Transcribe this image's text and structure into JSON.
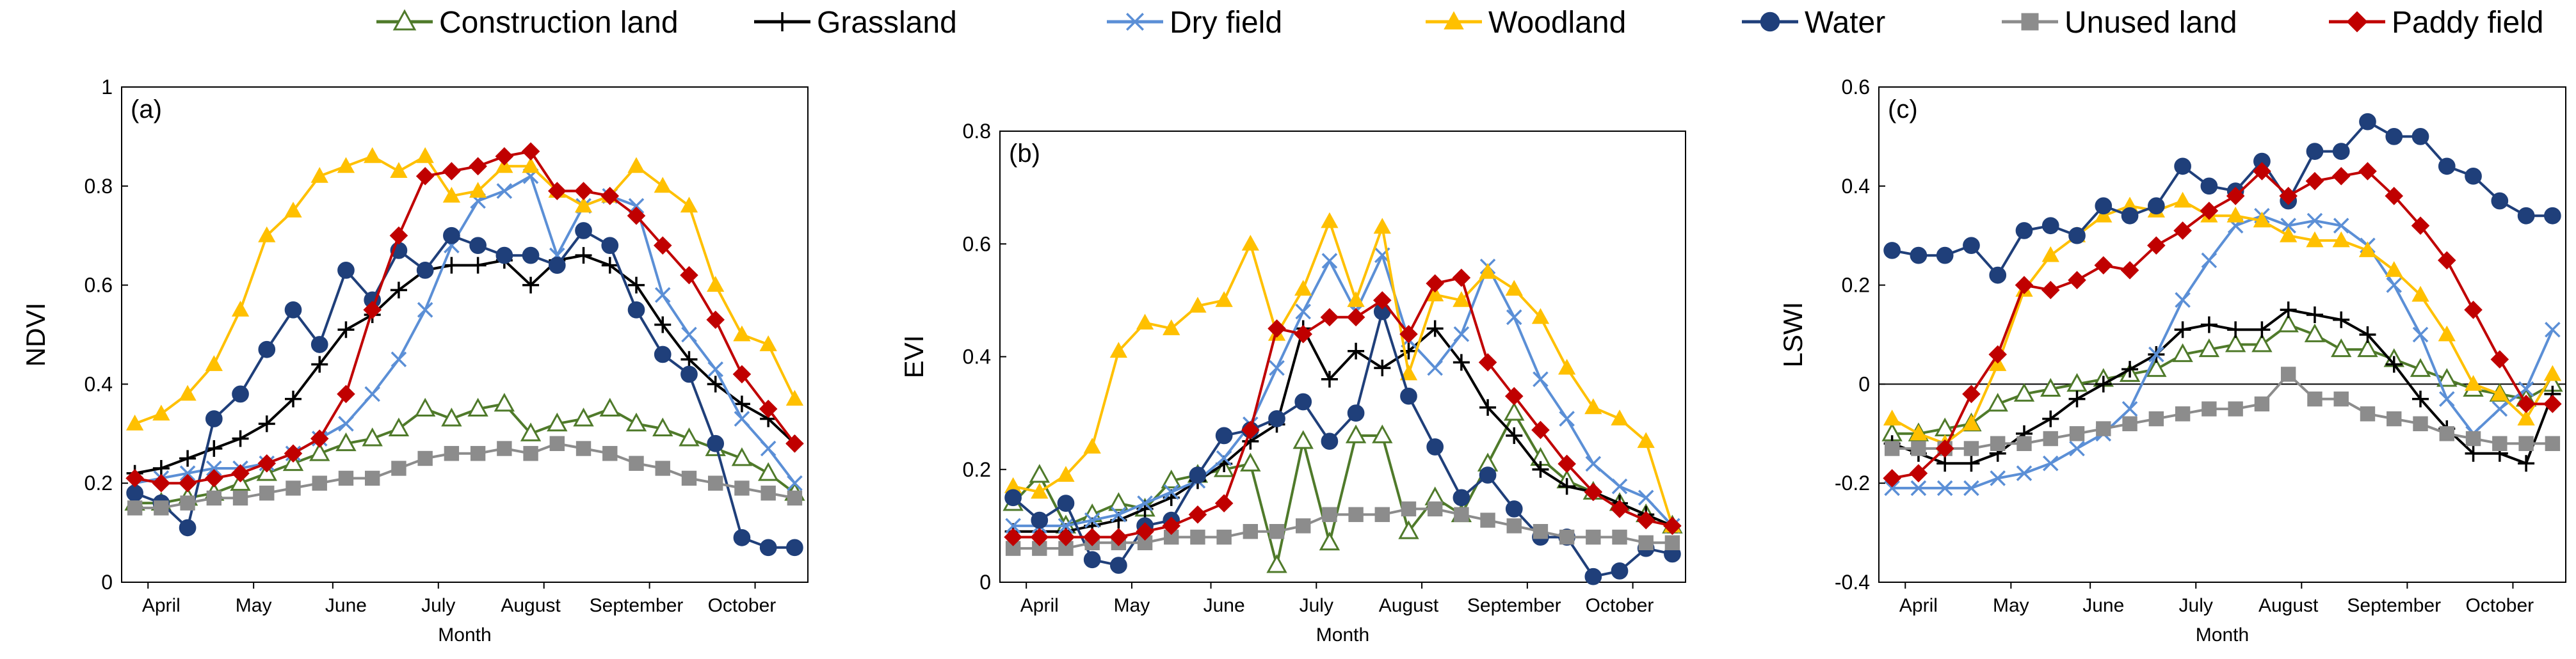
{
  "legend": {
    "items": [
      {
        "name": "Construction land",
        "color": "#4f7a2a",
        "marker": "triangle-open"
      },
      {
        "name": "Grassland",
        "color": "#000000",
        "marker": "plus"
      },
      {
        "name": "Dry field",
        "color": "#5b8fd6",
        "marker": "x"
      },
      {
        "name": "Woodland",
        "color": "#ffc000",
        "marker": "triangle"
      },
      {
        "name": "Water",
        "color": "#1f3f7a",
        "marker": "circle"
      },
      {
        "name": "Unused land",
        "color": "#8c8c8c",
        "marker": "square"
      },
      {
        "name": "Paddy field",
        "color": "#c00000",
        "marker": "diamond"
      }
    ]
  },
  "chart_data": [
    {
      "type": "line",
      "panel_label": "(a)",
      "ylabel": "NDVI",
      "xlabel": "Month",
      "ylim": [
        0,
        1
      ],
      "yticks": [
        "0",
        "0.2",
        "0.4",
        "0.6",
        "0.8",
        "1"
      ],
      "months": [
        "April",
        "May",
        "June",
        "July",
        "August",
        "September",
        "October"
      ],
      "x_index": [
        0,
        1,
        2,
        3,
        4,
        5,
        6,
        7,
        8,
        9,
        10,
        11,
        12,
        13,
        14,
        15,
        16,
        17,
        18,
        19,
        20,
        21,
        22,
        23,
        24,
        25
      ],
      "series": [
        {
          "name": "Construction land",
          "values": [
            0.16,
            0.16,
            0.17,
            0.18,
            0.2,
            0.22,
            0.24,
            0.26,
            0.28,
            0.29,
            0.31,
            0.35,
            0.33,
            0.35,
            0.36,
            0.3,
            0.32,
            0.33,
            0.35,
            0.32,
            0.31,
            0.29,
            0.27,
            0.25,
            0.22,
            0.18
          ]
        },
        {
          "name": "Grassland",
          "values": [
            0.22,
            0.23,
            0.25,
            0.27,
            0.29,
            0.32,
            0.37,
            0.44,
            0.51,
            0.54,
            0.59,
            0.63,
            0.64,
            0.64,
            0.65,
            0.6,
            0.65,
            0.66,
            0.64,
            0.6,
            0.52,
            0.45,
            0.4,
            0.36,
            0.33,
            0.28
          ]
        },
        {
          "name": "Dry field",
          "values": [
            0.2,
            0.21,
            0.22,
            0.23,
            0.23,
            0.24,
            0.26,
            0.29,
            0.32,
            0.38,
            0.45,
            0.55,
            0.68,
            0.77,
            0.79,
            0.82,
            0.66,
            0.76,
            0.78,
            0.76,
            0.58,
            0.5,
            0.43,
            0.33,
            0.27,
            0.2
          ]
        },
        {
          "name": "Woodland",
          "values": [
            0.32,
            0.34,
            0.38,
            0.44,
            0.55,
            0.7,
            0.75,
            0.82,
            0.84,
            0.86,
            0.83,
            0.86,
            0.78,
            0.79,
            0.84,
            0.84,
            0.79,
            0.76,
            0.78,
            0.84,
            0.8,
            0.76,
            0.6,
            0.5,
            0.48,
            0.37
          ]
        },
        {
          "name": "Water",
          "values": [
            0.18,
            0.16,
            0.11,
            0.33,
            0.38,
            0.47,
            0.55,
            0.48,
            0.63,
            0.57,
            0.67,
            0.63,
            0.7,
            0.68,
            0.66,
            0.66,
            0.64,
            0.71,
            0.68,
            0.55,
            0.46,
            0.42,
            0.28,
            0.09,
            0.07,
            0.07
          ]
        },
        {
          "name": "Unused land",
          "values": [
            0.15,
            0.15,
            0.16,
            0.17,
            0.17,
            0.18,
            0.19,
            0.2,
            0.21,
            0.21,
            0.23,
            0.25,
            0.26,
            0.26,
            0.27,
            0.26,
            0.28,
            0.27,
            0.26,
            0.24,
            0.23,
            0.21,
            0.2,
            0.19,
            0.18,
            0.17
          ]
        },
        {
          "name": "Paddy field",
          "values": [
            0.21,
            0.2,
            0.2,
            0.21,
            0.22,
            0.24,
            0.26,
            0.29,
            0.38,
            0.55,
            0.7,
            0.82,
            0.83,
            0.84,
            0.86,
            0.87,
            0.79,
            0.79,
            0.78,
            0.74,
            0.68,
            0.62,
            0.53,
            0.42,
            0.35,
            0.28
          ]
        }
      ]
    },
    {
      "type": "line",
      "panel_label": "(b)",
      "ylabel": "EVI",
      "xlabel": "Month",
      "ylim": [
        0,
        0.8
      ],
      "yticks": [
        "0",
        "0.2",
        "0.4",
        "0.6",
        "0.8"
      ],
      "months": [
        "April",
        "May",
        "June",
        "July",
        "August",
        "September",
        "October"
      ],
      "x_index": [
        0,
        1,
        2,
        3,
        4,
        5,
        6,
        7,
        8,
        9,
        10,
        11,
        12,
        13,
        14,
        15,
        16,
        17,
        18,
        19,
        20,
        21,
        22,
        23,
        24,
        25
      ],
      "series": [
        {
          "name": "Construction land",
          "values": [
            0.14,
            0.19,
            0.1,
            0.12,
            0.14,
            0.13,
            0.18,
            0.19,
            0.2,
            0.21,
            0.03,
            0.25,
            0.07,
            0.26,
            0.26,
            0.09,
            0.15,
            0.12,
            0.21,
            0.3,
            0.22,
            0.18,
            0.16,
            0.14,
            0.12,
            0.1
          ]
        },
        {
          "name": "Grassland",
          "values": [
            0.09,
            0.09,
            0.09,
            0.1,
            0.11,
            0.13,
            0.15,
            0.18,
            0.21,
            0.25,
            0.28,
            0.45,
            0.36,
            0.41,
            0.38,
            0.41,
            0.45,
            0.39,
            0.31,
            0.26,
            0.2,
            0.17,
            0.16,
            0.14,
            0.12,
            0.1
          ]
        },
        {
          "name": "Dry field",
          "values": [
            0.1,
            0.1,
            0.1,
            0.11,
            0.12,
            0.14,
            0.16,
            0.18,
            0.22,
            0.28,
            0.38,
            0.48,
            0.57,
            0.48,
            0.58,
            0.43,
            0.38,
            0.44,
            0.56,
            0.47,
            0.36,
            0.29,
            0.21,
            0.17,
            0.15,
            0.1
          ]
        },
        {
          "name": "Woodland",
          "values": [
            0.17,
            0.16,
            0.19,
            0.24,
            0.41,
            0.46,
            0.45,
            0.49,
            0.5,
            0.6,
            0.44,
            0.52,
            0.64,
            0.5,
            0.63,
            0.37,
            0.51,
            0.5,
            0.55,
            0.52,
            0.47,
            0.38,
            0.31,
            0.29,
            0.25,
            0.1
          ]
        },
        {
          "name": "Water",
          "values": [
            0.15,
            0.11,
            0.14,
            0.04,
            0.03,
            0.1,
            0.11,
            0.19,
            0.26,
            0.27,
            0.29,
            0.32,
            0.25,
            0.3,
            0.48,
            0.33,
            0.24,
            0.15,
            0.19,
            0.13,
            0.08,
            0.08,
            0.01,
            0.02,
            0.06,
            0.05
          ]
        },
        {
          "name": "Unused land",
          "values": [
            0.06,
            0.06,
            0.06,
            0.07,
            0.07,
            0.07,
            0.08,
            0.08,
            0.08,
            0.09,
            0.09,
            0.1,
            0.12,
            0.12,
            0.12,
            0.13,
            0.13,
            0.12,
            0.11,
            0.1,
            0.09,
            0.08,
            0.08,
            0.08,
            0.07,
            0.07
          ]
        },
        {
          "name": "Paddy field",
          "values": [
            0.08,
            0.08,
            0.08,
            0.08,
            0.08,
            0.09,
            0.1,
            0.12,
            0.14,
            0.27,
            0.45,
            0.44,
            0.47,
            0.47,
            0.5,
            0.44,
            0.53,
            0.54,
            0.39,
            0.33,
            0.27,
            0.21,
            0.16,
            0.13,
            0.11,
            0.1
          ]
        }
      ]
    },
    {
      "type": "line",
      "panel_label": "(c)",
      "ylabel": "LSWI",
      "xlabel": "Month",
      "ylim": [
        -0.4,
        0.6
      ],
      "yticks": [
        "-0.4",
        "-0.2",
        "0",
        "0.2",
        "0.4",
        "0.6"
      ],
      "months": [
        "April",
        "May",
        "June",
        "July",
        "August",
        "September",
        "October"
      ],
      "x_index": [
        0,
        1,
        2,
        3,
        4,
        5,
        6,
        7,
        8,
        9,
        10,
        11,
        12,
        13,
        14,
        15,
        16,
        17,
        18,
        19,
        20,
        21,
        22,
        23,
        24,
        25
      ],
      "series": [
        {
          "name": "Construction land",
          "values": [
            -0.1,
            -0.1,
            -0.09,
            -0.08,
            -0.04,
            -0.02,
            -0.01,
            0.0,
            0.01,
            0.02,
            0.03,
            0.06,
            0.07,
            0.08,
            0.08,
            0.12,
            0.1,
            0.07,
            0.07,
            0.05,
            0.03,
            0.01,
            -0.01,
            -0.02,
            -0.03,
            0.0
          ]
        },
        {
          "name": "Grassland",
          "values": [
            -0.12,
            -0.14,
            -0.16,
            -0.16,
            -0.14,
            -0.1,
            -0.07,
            -0.03,
            0.0,
            0.03,
            0.06,
            0.11,
            0.12,
            0.11,
            0.11,
            0.15,
            0.14,
            0.13,
            0.1,
            0.04,
            -0.03,
            -0.09,
            -0.14,
            -0.14,
            -0.16,
            -0.02
          ]
        },
        {
          "name": "Dry field",
          "values": [
            -0.21,
            -0.21,
            -0.21,
            -0.21,
            -0.19,
            -0.18,
            -0.16,
            -0.13,
            -0.1,
            -0.05,
            0.06,
            0.17,
            0.25,
            0.32,
            0.34,
            0.32,
            0.33,
            0.32,
            0.28,
            0.2,
            0.1,
            -0.03,
            -0.1,
            -0.05,
            -0.01,
            0.11
          ]
        },
        {
          "name": "Woodland",
          "values": [
            -0.07,
            -0.1,
            -0.12,
            -0.08,
            0.04,
            0.19,
            0.26,
            0.3,
            0.34,
            0.36,
            0.35,
            0.37,
            0.34,
            0.34,
            0.33,
            0.3,
            0.29,
            0.29,
            0.27,
            0.23,
            0.18,
            0.1,
            0.0,
            -0.02,
            -0.07,
            0.02
          ]
        },
        {
          "name": "Water",
          "values": [
            0.27,
            0.26,
            0.26,
            0.28,
            0.22,
            0.31,
            0.32,
            0.3,
            0.36,
            0.34,
            0.36,
            0.44,
            0.4,
            0.39,
            0.45,
            0.37,
            0.47,
            0.47,
            0.53,
            0.5,
            0.5,
            0.44,
            0.42,
            0.37,
            0.34,
            0.34
          ]
        },
        {
          "name": "Unused land",
          "values": [
            -0.13,
            -0.13,
            -0.13,
            -0.13,
            -0.12,
            -0.12,
            -0.11,
            -0.1,
            -0.09,
            -0.08,
            -0.07,
            -0.06,
            -0.05,
            -0.05,
            -0.04,
            0.02,
            -0.03,
            -0.03,
            -0.06,
            -0.07,
            -0.08,
            -0.1,
            -0.11,
            -0.12,
            -0.12,
            -0.12
          ]
        },
        {
          "name": "Paddy field",
          "values": [
            -0.19,
            -0.18,
            -0.13,
            -0.02,
            0.06,
            0.2,
            0.19,
            0.21,
            0.24,
            0.23,
            0.28,
            0.31,
            0.35,
            0.38,
            0.43,
            0.38,
            0.41,
            0.42,
            0.43,
            0.38,
            0.32,
            0.25,
            0.15,
            0.05,
            -0.04,
            -0.04
          ]
        }
      ]
    }
  ]
}
